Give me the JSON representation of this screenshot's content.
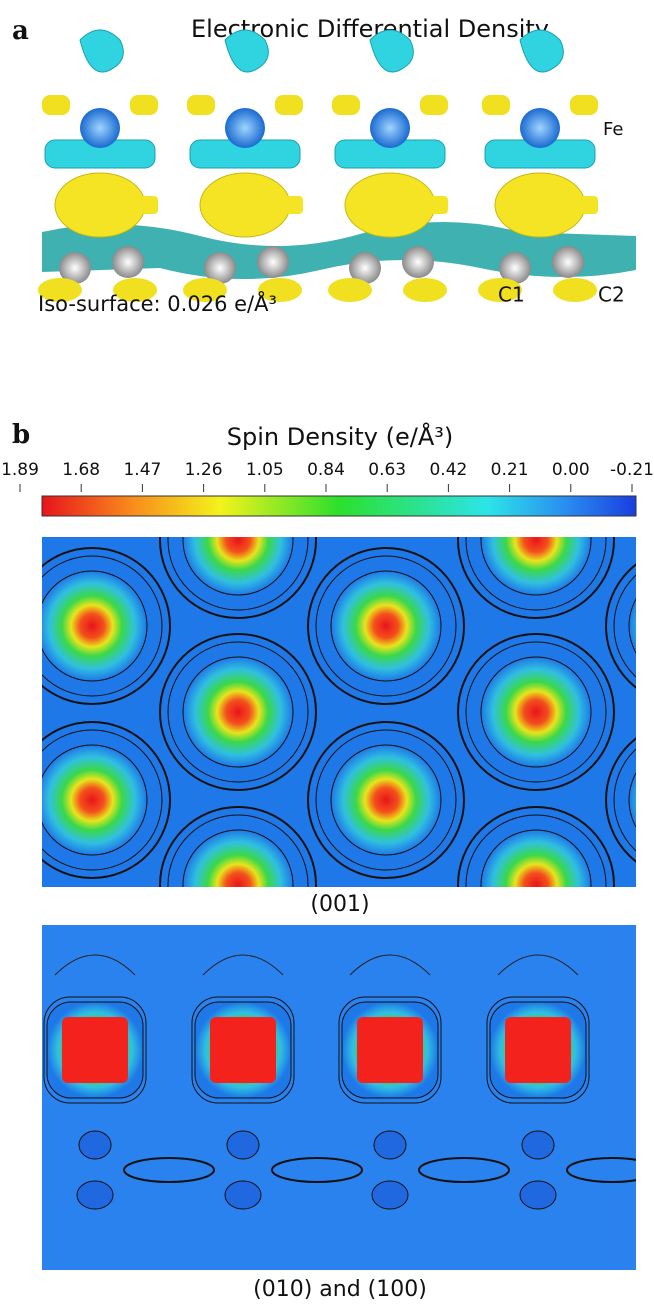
{
  "panel_a": {
    "label": "a",
    "title": "Electronic Differential Density",
    "atom_labels": [
      "Fe",
      "C1",
      "C2"
    ],
    "iso_surface": "Iso-surface: 0.026 e/Å³"
  },
  "panel_b": {
    "label": "b",
    "title": "Spin Density (e/Å³)",
    "colorbar": {
      "lim": [
        1.89,
        -0.21
      ],
      "ticks": [
        1.89,
        1.68,
        1.47,
        1.26,
        1.05,
        0.84,
        0.63,
        0.42,
        0.21,
        {
          "value": 0,
          "label": "0.00"
        },
        -0.21
      ]
    },
    "captions": [
      "(001)",
      "(010) and (100)"
    ]
  }
}
